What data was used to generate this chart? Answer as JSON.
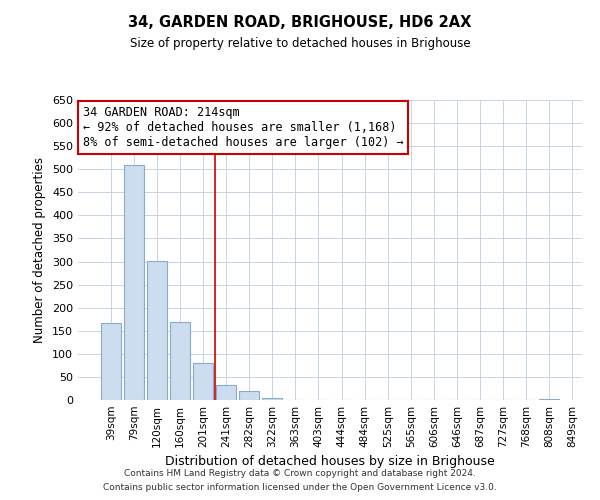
{
  "title": "34, GARDEN ROAD, BRIGHOUSE, HD6 2AX",
  "subtitle": "Size of property relative to detached houses in Brighouse",
  "xlabel": "Distribution of detached houses by size in Brighouse",
  "ylabel": "Number of detached properties",
  "bar_values": [
    167,
    510,
    302,
    170,
    80,
    32,
    20,
    5,
    1,
    0,
    0,
    0,
    0,
    0,
    0,
    0,
    0,
    0,
    0,
    2
  ],
  "bar_labels": [
    "39sqm",
    "79sqm",
    "120sqm",
    "160sqm",
    "201sqm",
    "241sqm",
    "282sqm",
    "322sqm",
    "363sqm",
    "403sqm",
    "444sqm",
    "484sqm",
    "525sqm",
    "565sqm",
    "606sqm",
    "646sqm",
    "687sqm",
    "727sqm",
    "768sqm",
    "808sqm",
    "849sqm"
  ],
  "bar_color": "#ccddf0",
  "bar_edge_color": "#88aacc",
  "vline_x": 4.5,
  "vline_color": "#cc0000",
  "ylim": [
    0,
    650
  ],
  "yticks": [
    0,
    50,
    100,
    150,
    200,
    250,
    300,
    350,
    400,
    450,
    500,
    550,
    600,
    650
  ],
  "annotation_title": "34 GARDEN ROAD: 214sqm",
  "annotation_line1": "← 92% of detached houses are smaller (1,168)",
  "annotation_line2": "8% of semi-detached houses are larger (102) →",
  "annotation_box_color": "#ffffff",
  "annotation_box_edge": "#cc0000",
  "footer_line1": "Contains HM Land Registry data © Crown copyright and database right 2024.",
  "footer_line2": "Contains public sector information licensed under the Open Government Licence v3.0.",
  "background_color": "#ffffff",
  "grid_color": "#c8d4e4"
}
